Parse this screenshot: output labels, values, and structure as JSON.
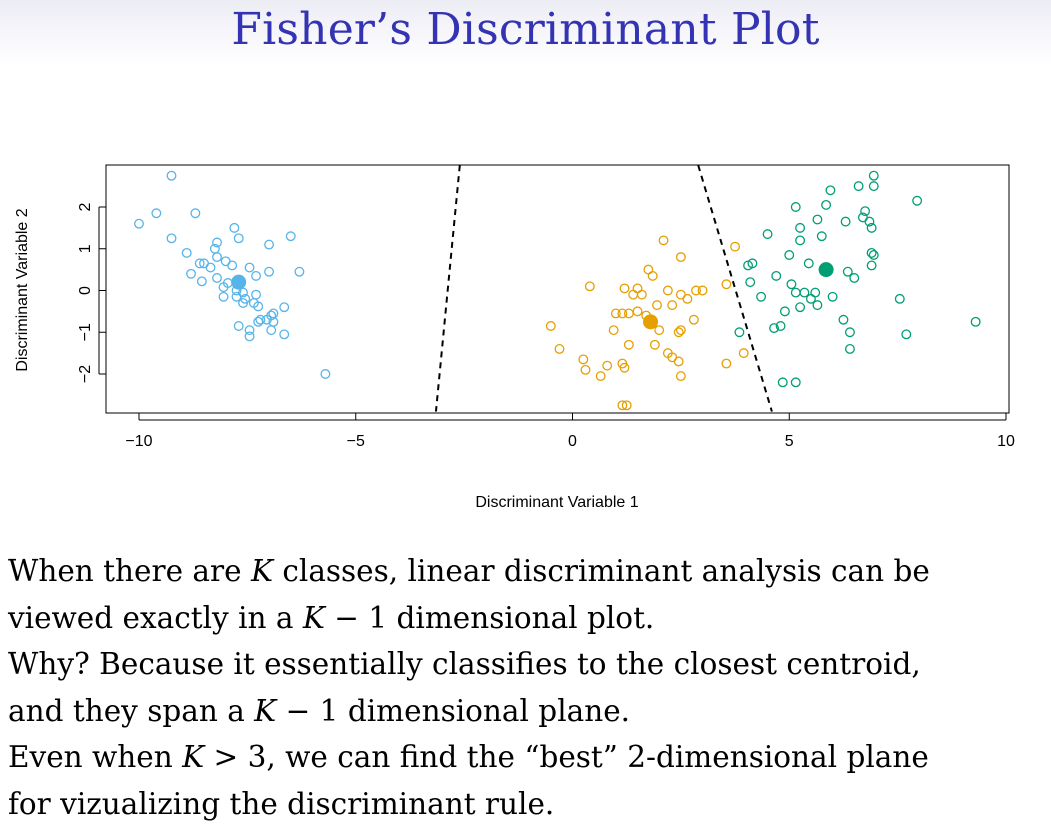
{
  "slide": {
    "title": "Fisher’s Discriminant Plot",
    "body_lines": [
      [
        "When there are ",
        {
          "math": "K"
        },
        " classes, linear discriminant analysis can be"
      ],
      [
        "viewed exactly in a ",
        {
          "math": "K"
        },
        " − 1 dimensional plot."
      ],
      [
        "Why? Because it essentially classifies to the closest centroid,"
      ],
      [
        "and they span a ",
        {
          "math": "K"
        },
        " − 1 dimensional plane."
      ],
      [
        "Even when ",
        {
          "math": "K"
        },
        " > 3, we can find the “best” 2-dimensional plane"
      ],
      [
        "for vizualizing the discriminant rule."
      ]
    ]
  },
  "chart_data": {
    "type": "scatter",
    "xlabel": "Discriminant Variable 1",
    "ylabel": "Discriminant Variable 2",
    "xlim": [
      -10,
      10
    ],
    "ylim": [
      -2.5,
      2.5
    ],
    "xticks": [
      -10,
      -5,
      0,
      5,
      10
    ],
    "yticks": [
      -2,
      -1,
      0,
      1,
      2
    ],
    "xtick_labels": [
      "−10",
      "−5",
      "0",
      "5",
      "10"
    ],
    "ytick_labels": [
      "−2",
      "−1",
      "0",
      "1",
      "2"
    ],
    "series": [
      {
        "color": "#56b4e9",
        "centroid": [
          -7.7,
          0.2
        ],
        "points": [
          [
            -9.25,
            2.75
          ],
          [
            -9.6,
            1.85
          ],
          [
            -10.0,
            1.6
          ],
          [
            -8.7,
            1.85
          ],
          [
            -7.8,
            1.5
          ],
          [
            -9.25,
            1.25
          ],
          [
            -7.7,
            1.25
          ],
          [
            -6.5,
            1.3
          ],
          [
            -7.0,
            1.1
          ],
          [
            -8.2,
            1.15
          ],
          [
            -8.25,
            1.0
          ],
          [
            -8.9,
            0.9
          ],
          [
            -8.6,
            0.65
          ],
          [
            -8.5,
            0.65
          ],
          [
            -8.2,
            0.8
          ],
          [
            -8.0,
            0.7
          ],
          [
            -7.85,
            0.6
          ],
          [
            -8.35,
            0.55
          ],
          [
            -7.45,
            0.55
          ],
          [
            -7.0,
            0.45
          ],
          [
            -6.3,
            0.45
          ],
          [
            -8.8,
            0.4
          ],
          [
            -7.3,
            0.35
          ],
          [
            -8.2,
            0.3
          ],
          [
            -8.55,
            0.22
          ],
          [
            -7.95,
            0.18
          ],
          [
            -8.05,
            0.08
          ],
          [
            -7.75,
            0.0
          ],
          [
            -7.6,
            -0.05
          ],
          [
            -7.3,
            -0.1
          ],
          [
            -8.05,
            -0.15
          ],
          [
            -7.75,
            -0.15
          ],
          [
            -7.55,
            -0.2
          ],
          [
            -7.6,
            -0.3
          ],
          [
            -7.35,
            -0.3
          ],
          [
            -7.25,
            -0.38
          ],
          [
            -6.65,
            -0.4
          ],
          [
            -6.9,
            -0.55
          ],
          [
            -6.95,
            -0.6
          ],
          [
            -7.05,
            -0.7
          ],
          [
            -7.25,
            -0.75
          ],
          [
            -7.2,
            -0.7
          ],
          [
            -6.9,
            -0.75
          ],
          [
            -7.7,
            -0.85
          ],
          [
            -7.45,
            -0.95
          ],
          [
            -6.95,
            -0.95
          ],
          [
            -6.65,
            -1.05
          ],
          [
            -7.45,
            -1.1
          ],
          [
            -5.7,
            -2.0
          ]
        ]
      },
      {
        "color": "#e69f00",
        "centroid": [
          1.8,
          -0.75
        ],
        "points": [
          [
            2.1,
            1.2
          ],
          [
            2.5,
            0.8
          ],
          [
            1.75,
            0.5
          ],
          [
            1.85,
            0.35
          ],
          [
            0.4,
            0.1
          ],
          [
            1.2,
            0.05
          ],
          [
            1.5,
            0.05
          ],
          [
            1.4,
            -0.1
          ],
          [
            1.6,
            -0.1
          ],
          [
            2.2,
            0.0
          ],
          [
            2.5,
            -0.1
          ],
          [
            2.85,
            0.0
          ],
          [
            3.0,
            0.0
          ],
          [
            2.65,
            -0.2
          ],
          [
            2.3,
            -0.35
          ],
          [
            1.95,
            -0.35
          ],
          [
            1.5,
            -0.5
          ],
          [
            1.3,
            -0.55
          ],
          [
            1.0,
            -0.55
          ],
          [
            1.15,
            -0.55
          ],
          [
            1.7,
            -0.6
          ],
          [
            2.8,
            -0.7
          ],
          [
            2.5,
            -0.95
          ],
          [
            2.45,
            -1.0
          ],
          [
            2.0,
            -0.95
          ],
          [
            0.95,
            -0.95
          ],
          [
            -0.5,
            -0.85
          ],
          [
            1.3,
            -1.3
          ],
          [
            1.9,
            -1.3
          ],
          [
            -0.3,
            -1.4
          ],
          [
            2.2,
            -1.5
          ],
          [
            2.3,
            -1.6
          ],
          [
            2.45,
            -1.7
          ],
          [
            0.25,
            -1.65
          ],
          [
            1.15,
            -1.75
          ],
          [
            0.8,
            -1.8
          ],
          [
            0.3,
            -1.9
          ],
          [
            1.2,
            -1.85
          ],
          [
            0.65,
            -2.05
          ],
          [
            2.5,
            -2.05
          ],
          [
            3.55,
            0.15
          ],
          [
            3.75,
            1.05
          ],
          [
            3.95,
            -1.5
          ],
          [
            3.55,
            -1.75
          ],
          [
            1.15,
            -2.75
          ],
          [
            1.25,
            -2.75
          ]
        ]
      },
      {
        "color": "#009e73",
        "centroid": [
          5.85,
          0.5
        ],
        "points": [
          [
            6.95,
            2.75
          ],
          [
            5.95,
            2.4
          ],
          [
            6.6,
            2.5
          ],
          [
            6.95,
            2.5
          ],
          [
            7.95,
            2.15
          ],
          [
            5.15,
            2.0
          ],
          [
            5.85,
            2.05
          ],
          [
            6.75,
            1.9
          ],
          [
            6.7,
            1.75
          ],
          [
            5.65,
            1.7
          ],
          [
            6.3,
            1.65
          ],
          [
            6.85,
            1.65
          ],
          [
            5.25,
            1.5
          ],
          [
            6.9,
            1.5
          ],
          [
            4.5,
            1.35
          ],
          [
            5.75,
            1.3
          ],
          [
            5.25,
            1.2
          ],
          [
            6.9,
            0.9
          ],
          [
            6.95,
            0.85
          ],
          [
            4.15,
            0.65
          ],
          [
            4.05,
            0.6
          ],
          [
            5.45,
            0.65
          ],
          [
            6.9,
            0.6
          ],
          [
            5.0,
            0.85
          ],
          [
            6.35,
            0.45
          ],
          [
            4.7,
            0.35
          ],
          [
            6.5,
            0.3
          ],
          [
            5.05,
            0.15
          ],
          [
            4.1,
            0.2
          ],
          [
            5.15,
            -0.05
          ],
          [
            5.35,
            -0.05
          ],
          [
            5.6,
            -0.05
          ],
          [
            6.0,
            -0.15
          ],
          [
            5.5,
            -0.2
          ],
          [
            4.35,
            -0.15
          ],
          [
            5.65,
            -0.35
          ],
          [
            5.25,
            -0.4
          ],
          [
            7.55,
            -0.2
          ],
          [
            4.9,
            -0.5
          ],
          [
            6.25,
            -0.7
          ],
          [
            9.3,
            -0.75
          ],
          [
            4.65,
            -0.9
          ],
          [
            4.8,
            -0.85
          ],
          [
            3.85,
            -1.0
          ],
          [
            6.4,
            -1.0
          ],
          [
            7.7,
            -1.05
          ],
          [
            6.4,
            -1.4
          ],
          [
            4.85,
            -2.2
          ],
          [
            5.15,
            -2.2
          ]
        ]
      }
    ],
    "boundaries": [
      [
        [
          -2.6,
          3.0
        ],
        [
          -3.15,
          -2.9
        ]
      ],
      [
        [
          2.9,
          3.0
        ],
        [
          4.6,
          -2.9
        ]
      ]
    ]
  }
}
